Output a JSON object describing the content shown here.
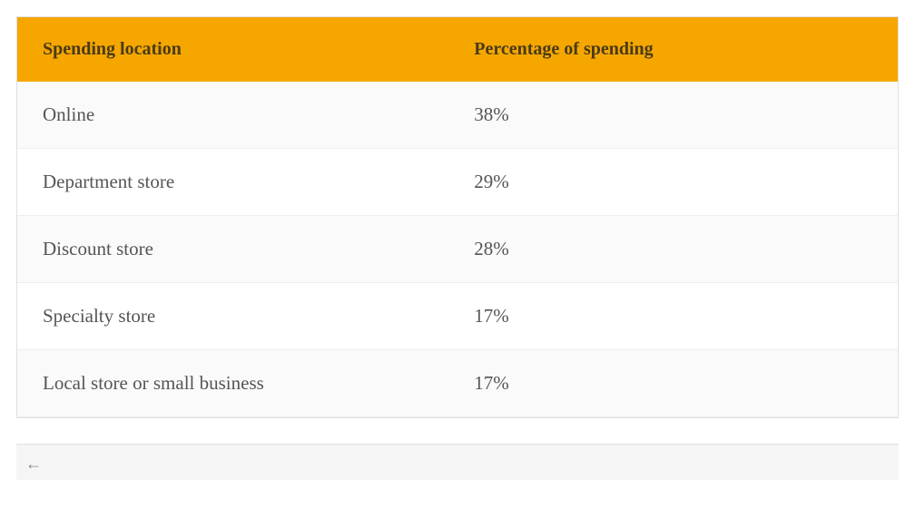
{
  "table": {
    "header_bg_color": "#f5a700",
    "header_text_color": "#4a3a1a",
    "row_text_color": "#555555",
    "row_odd_bg": "#fafafa",
    "row_even_bg": "#ffffff",
    "border_color": "#e0e0e0",
    "row_border_color": "#eeeeee",
    "header_fontsize": 20,
    "cell_fontsize": 21,
    "columns": [
      {
        "label": "Spending location",
        "width_pct": 52
      },
      {
        "label": "Percentage of spending",
        "width_pct": 48
      }
    ],
    "rows": [
      {
        "location": "Online",
        "percentage": "38%"
      },
      {
        "location": "Department store",
        "percentage": "29%"
      },
      {
        "location": "Discount store",
        "percentage": "28%"
      },
      {
        "location": "Specialty store",
        "percentage": "17%"
      },
      {
        "location": "Local store or small business",
        "percentage": "17%"
      }
    ]
  },
  "footer": {
    "back_arrow_glyph": "←"
  }
}
